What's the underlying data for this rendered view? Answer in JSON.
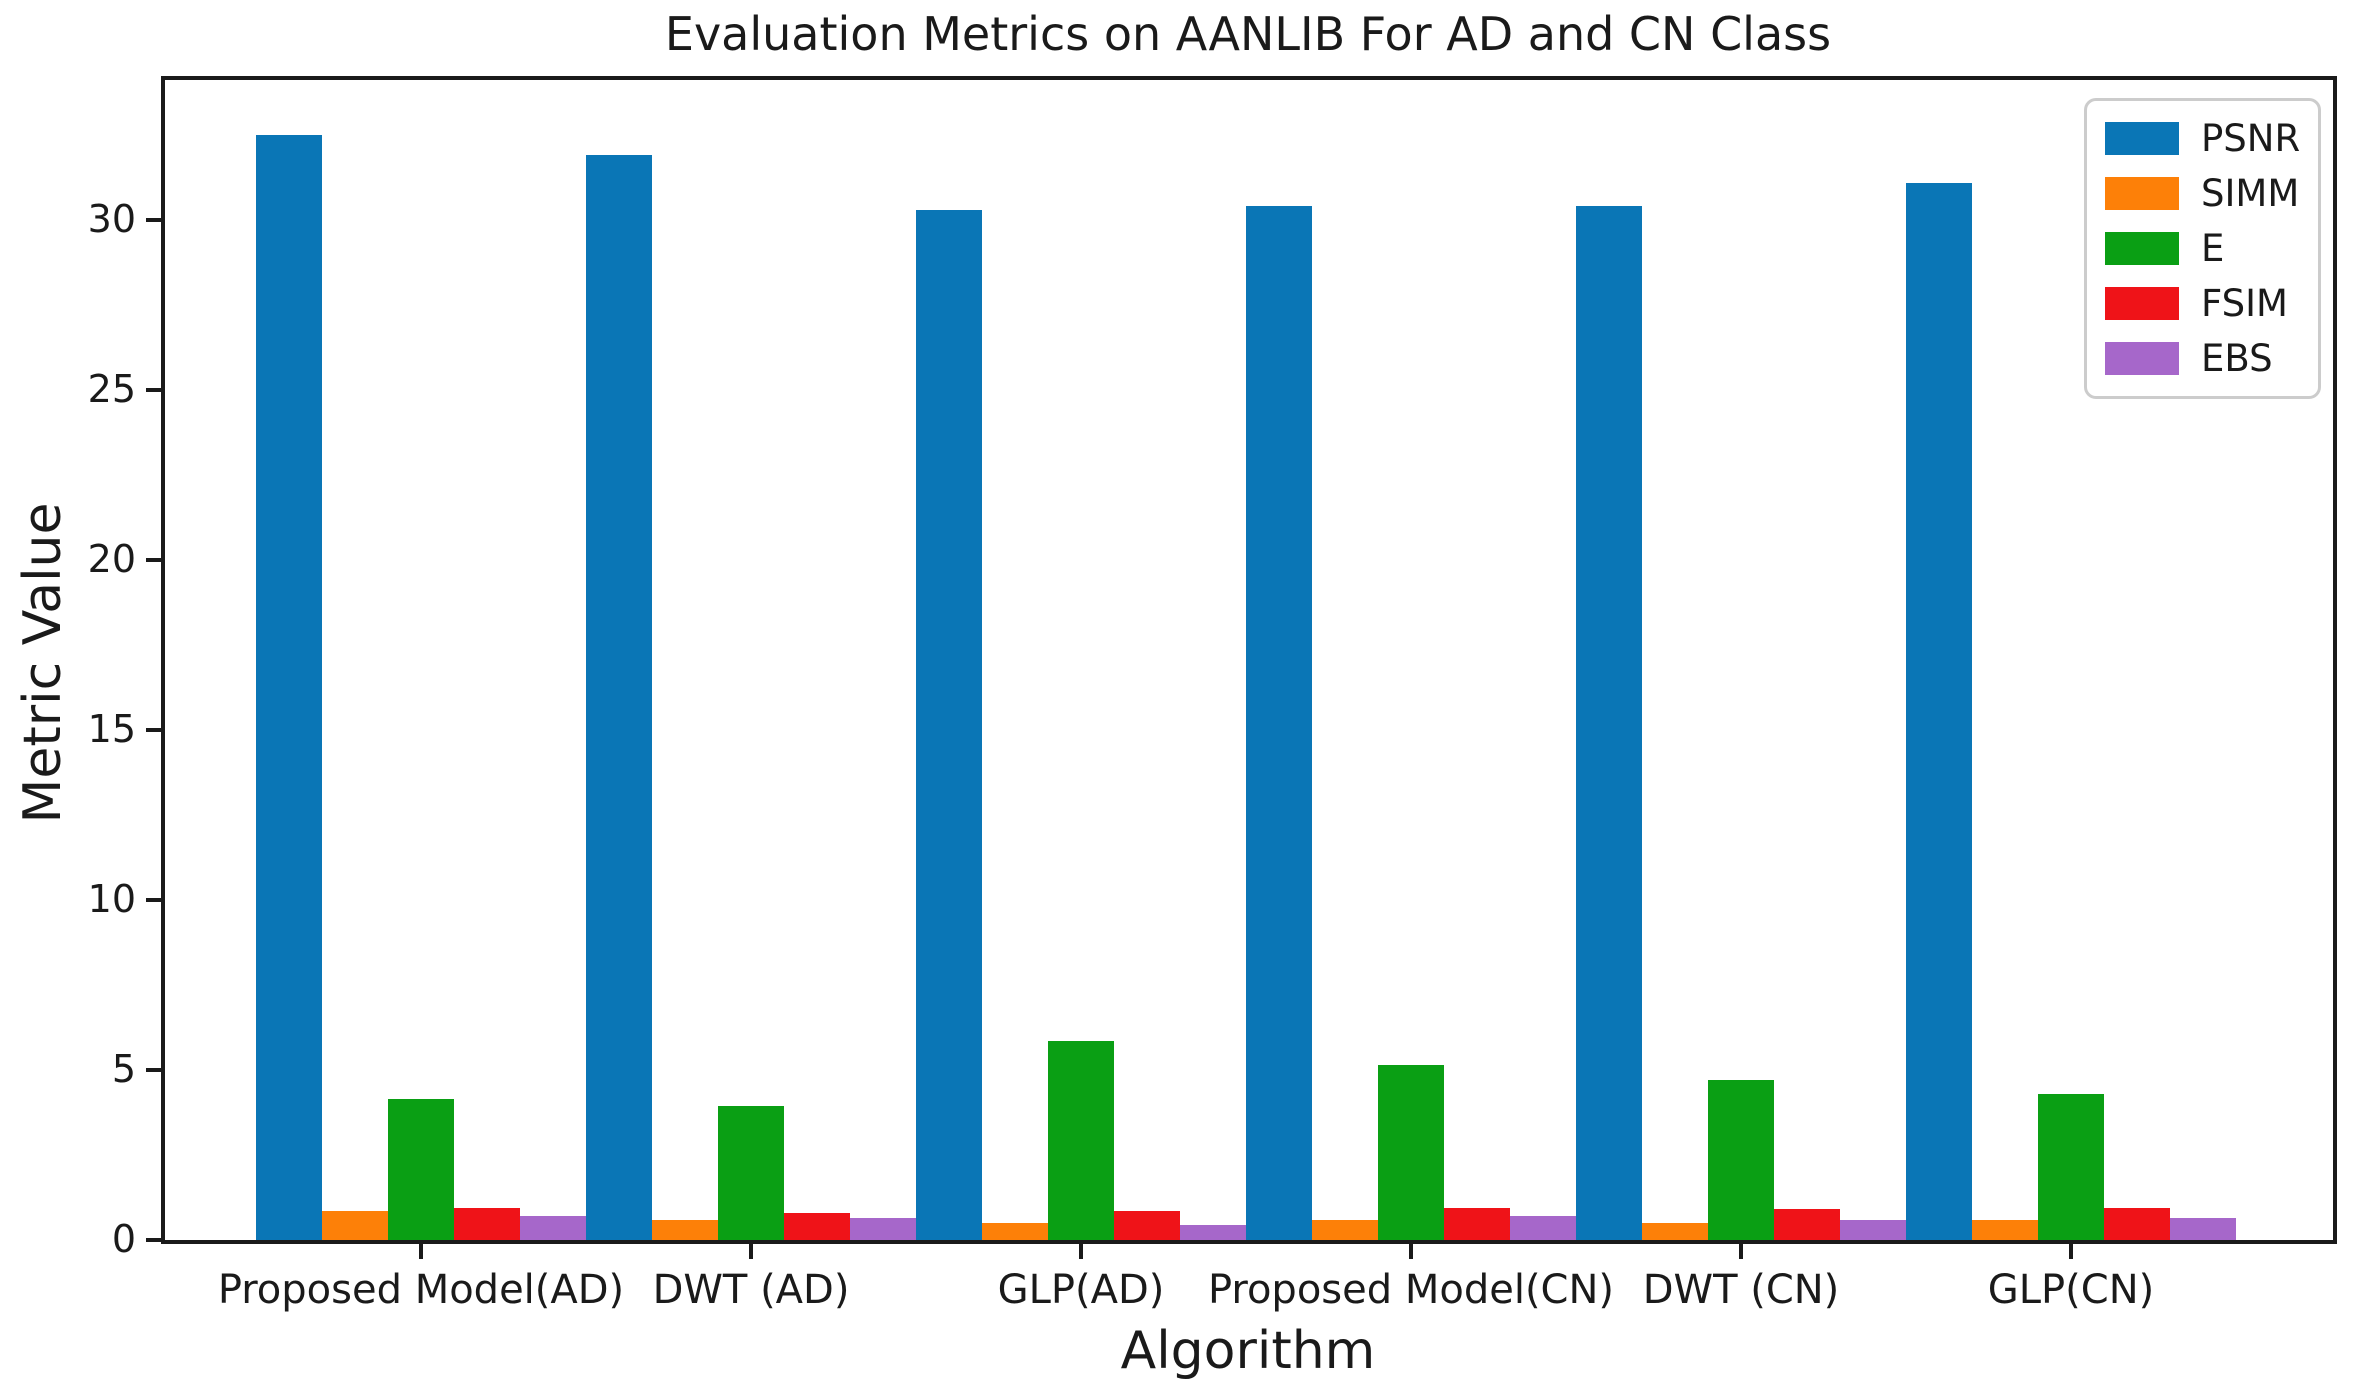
{
  "chart_data": {
    "type": "bar",
    "title": "Evaluation Metrics on AANLIB For AD and CN Class",
    "xlabel": "Algorithm",
    "ylabel": "Metric Value",
    "categories": [
      "Proposed Model(AD)",
      "DWT (AD)",
      "GLP(AD)",
      "Proposed Model(CN)",
      "DWT (CN)",
      "GLP(CN)"
    ],
    "series": [
      {
        "name": "PSNR",
        "color": "#0a76b6",
        "values": [
          32.5,
          31.9,
          30.3,
          30.4,
          30.4,
          31.1
        ]
      },
      {
        "name": "SIMM",
        "color": "#fd8008",
        "values": [
          0.85,
          0.6,
          0.5,
          0.6,
          0.5,
          0.6
        ]
      },
      {
        "name": "E",
        "color": "#0a9f14",
        "values": [
          4.15,
          3.95,
          5.85,
          5.15,
          4.7,
          4.3
        ]
      },
      {
        "name": "FSIM",
        "color": "#ef1318",
        "values": [
          0.95,
          0.8,
          0.85,
          0.95,
          0.9,
          0.95
        ]
      },
      {
        "name": "EBS",
        "color": "#a667ca",
        "values": [
          0.7,
          0.65,
          0.45,
          0.7,
          0.6,
          0.65
        ]
      }
    ],
    "ylim": [
      0,
      34.2
    ],
    "yticks": [
      0,
      5,
      10,
      15,
      20,
      25,
      30
    ],
    "legend": {
      "position": "upper-right",
      "entries": [
        "PSNR",
        "SIMM",
        "E",
        "FSIM",
        "EBS"
      ]
    },
    "grid": false
  },
  "style": {
    "spine_color": "#1a1a1a",
    "text_color": "#1a1a1a",
    "legend_border_color": "#cccccc",
    "background": "#ffffff"
  }
}
